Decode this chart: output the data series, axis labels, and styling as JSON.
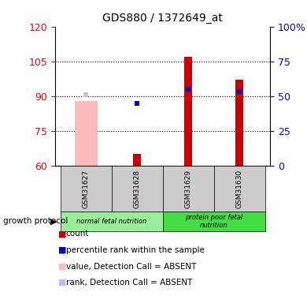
{
  "title": "GDS880 / 1372649_at",
  "samples": [
    "GSM31627",
    "GSM31628",
    "GSM31629",
    "GSM31630"
  ],
  "ylim_left": [
    60,
    120
  ],
  "ylim_right": [
    0,
    100
  ],
  "yticks_left": [
    60,
    75,
    90,
    105,
    120
  ],
  "ytick_labels_right": [
    "0",
    "25",
    "50",
    "75",
    "100%"
  ],
  "yticks_right_vals": [
    0,
    25,
    50,
    75,
    100
  ],
  "bar_values": [
    null,
    65,
    107,
    97
  ],
  "absent_value_bar": [
    88,
    null,
    null,
    null
  ],
  "absent_rank_marker": [
    90.5,
    null,
    null,
    null
  ],
  "blue_markers": [
    null,
    87,
    93,
    92
  ],
  "groups": [
    {
      "label": "normal fetal nutrition",
      "cols": [
        0,
        1
      ],
      "color": "#99ee99"
    },
    {
      "label": "protein poor fetal\nnutrition",
      "cols": [
        2,
        3
      ],
      "color": "#44dd44"
    }
  ],
  "group_row_bg": "#cccccc",
  "growth_protocol_label": "growth protocol",
  "absent_bar_color": "#ffbbbb",
  "absent_rank_color": "#bbbbff",
  "blue_marker_color": "#0000cc",
  "red_bar_color": "#cc0000",
  "dotted_lines": [
    75,
    90,
    105
  ],
  "legend_items": [
    {
      "color": "#cc0000",
      "label": "count"
    },
    {
      "color": "#0000cc",
      "label": "percentile rank within the sample"
    },
    {
      "color": "#ffbbbb",
      "label": "value, Detection Call = ABSENT"
    },
    {
      "color": "#bbbbff",
      "label": "rank, Detection Call = ABSENT"
    }
  ]
}
